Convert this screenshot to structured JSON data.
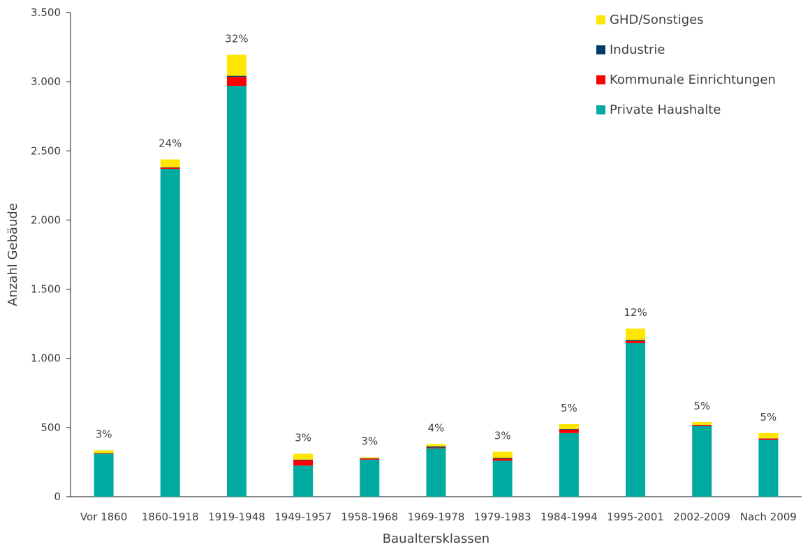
{
  "chart_data": {
    "type": "bar",
    "stacked": true,
    "title": "",
    "xlabel": "Baualtersklassen",
    "ylabel": "Anzahl Gebäude",
    "ylim": [
      0,
      3500
    ],
    "yticks": [
      0,
      500,
      1000,
      1500,
      2000,
      2500,
      3000,
      3500
    ],
    "ytick_labels": [
      "0",
      "500",
      "1.000",
      "1.500",
      "2.000",
      "2.500",
      "3.000",
      "3.500"
    ],
    "grid": false,
    "legend_position": "top-right",
    "categories": [
      "Vor 1860",
      "1860-1918",
      "1919-1948",
      "1949-1957",
      "1958-1968",
      "1969-1978",
      "1979-1983",
      "1984-1994",
      "1995-2001",
      "2002-2009",
      "Nach 2009"
    ],
    "series": [
      {
        "name": "Private Haushalte",
        "color": "#00aaa0",
        "values": [
          310,
          2370,
          2970,
          225,
          268,
          350,
          260,
          460,
          1110,
          510,
          410
        ]
      },
      {
        "name": "Kommunale Einrichtungen",
        "color": "#ff0000",
        "values": [
          3,
          8,
          65,
          38,
          8,
          5,
          15,
          25,
          15,
          8,
          10
        ]
      },
      {
        "name": "Industrie",
        "color": "#003a66",
        "values": [
          2,
          3,
          8,
          5,
          2,
          8,
          5,
          5,
          8,
          2,
          2
        ]
      },
      {
        "name": "GHD/Sonstiges",
        "color": "#ffe600",
        "values": [
          20,
          57,
          152,
          42,
          7,
          17,
          45,
          35,
          82,
          20,
          38
        ]
      }
    ],
    "data_labels": [
      "3%",
      "24%",
      "32%",
      "3%",
      "3%",
      "4%",
      "3%",
      "5%",
      "12%",
      "5%",
      "5%"
    ],
    "legend_order": [
      "GHD/Sonstiges",
      "Industrie",
      "Kommunale Einrichtungen",
      "Private Haushalte"
    ]
  }
}
